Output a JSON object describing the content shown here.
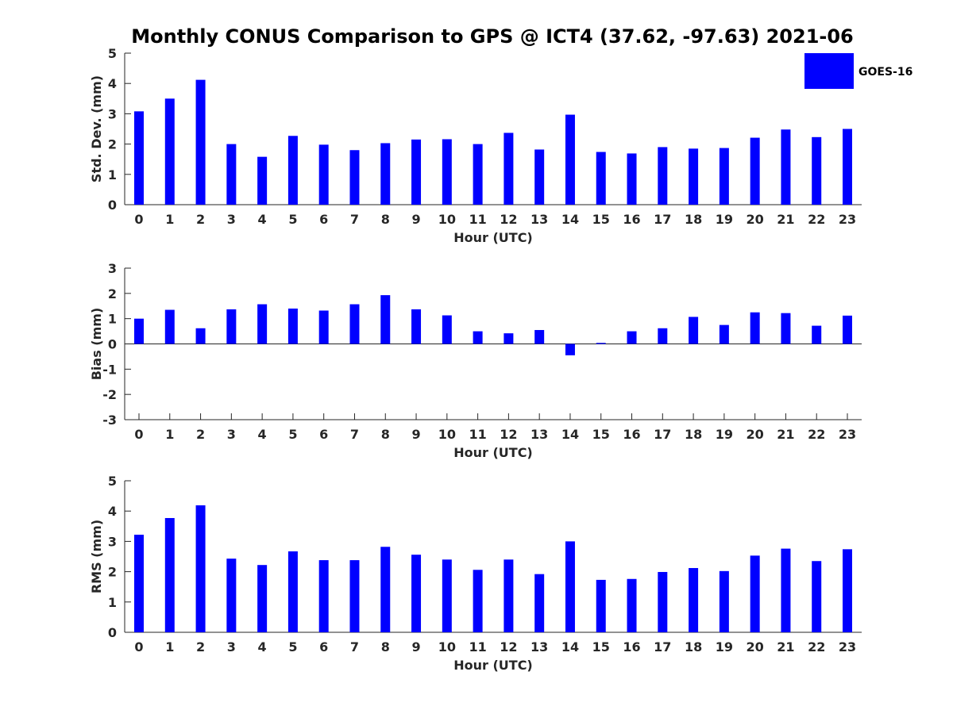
{
  "title": "Monthly CONUS Comparison to GPS @ ICT4 (37.62, -97.63) 2021-06",
  "legend": {
    "label": "GOES-16",
    "position": "top-right"
  },
  "colors": {
    "bar": "#0000ff",
    "axis": "#262626"
  },
  "chart_data": [
    {
      "type": "bar",
      "categories": [
        "0",
        "1",
        "2",
        "3",
        "4",
        "5",
        "6",
        "7",
        "8",
        "9",
        "10",
        "11",
        "12",
        "13",
        "14",
        "15",
        "16",
        "17",
        "18",
        "19",
        "20",
        "21",
        "22",
        "23"
      ],
      "series": [
        {
          "name": "GOES-16",
          "values": [
            3.08,
            3.5,
            4.12,
            2.0,
            1.58,
            2.27,
            1.98,
            1.8,
            2.03,
            2.15,
            2.16,
            2.0,
            2.37,
            1.82,
            2.97,
            1.74,
            1.69,
            1.9,
            1.85,
            1.87,
            2.21,
            2.48,
            2.23,
            2.5
          ]
        }
      ],
      "xlabel": "Hour (UTC)",
      "ylabel": "Std. Dev. (mm)",
      "ylim": [
        0,
        5
      ],
      "yticks": [
        "0",
        "1",
        "2",
        "3",
        "4",
        "5"
      ],
      "grid": false
    },
    {
      "type": "bar",
      "categories": [
        "0",
        "1",
        "2",
        "3",
        "4",
        "5",
        "6",
        "7",
        "8",
        "9",
        "10",
        "11",
        "12",
        "13",
        "14",
        "15",
        "16",
        "17",
        "18",
        "19",
        "20",
        "21",
        "22",
        "23"
      ],
      "series": [
        {
          "name": "GOES-16",
          "values": [
            1.0,
            1.35,
            0.62,
            1.37,
            1.57,
            1.4,
            1.32,
            1.57,
            1.93,
            1.37,
            1.13,
            0.5,
            0.42,
            0.55,
            -0.45,
            0.04,
            0.5,
            0.62,
            1.07,
            0.75,
            1.25,
            1.22,
            0.72,
            1.12
          ]
        }
      ],
      "xlabel": "Hour (UTC)",
      "ylabel": "Bias (mm)",
      "ylim": [
        -3,
        3
      ],
      "yticks": [
        "-3",
        "-2",
        "-1",
        "0",
        "1",
        "2",
        "3"
      ],
      "grid": false
    },
    {
      "type": "bar",
      "categories": [
        "0",
        "1",
        "2",
        "3",
        "4",
        "5",
        "6",
        "7",
        "8",
        "9",
        "10",
        "11",
        "12",
        "13",
        "14",
        "15",
        "16",
        "17",
        "18",
        "19",
        "20",
        "21",
        "22",
        "23"
      ],
      "series": [
        {
          "name": "GOES-16",
          "values": [
            3.22,
            3.77,
            4.19,
            2.43,
            2.22,
            2.67,
            2.38,
            2.38,
            2.82,
            2.56,
            2.4,
            2.06,
            2.4,
            1.92,
            3.0,
            1.73,
            1.76,
            1.99,
            2.12,
            2.02,
            2.53,
            2.76,
            2.35,
            2.74
          ]
        }
      ],
      "xlabel": "Hour (UTC)",
      "ylabel": "RMS (mm)",
      "ylim": [
        0,
        5
      ],
      "yticks": [
        "0",
        "1",
        "2",
        "3",
        "4",
        "5"
      ],
      "grid": false
    }
  ]
}
